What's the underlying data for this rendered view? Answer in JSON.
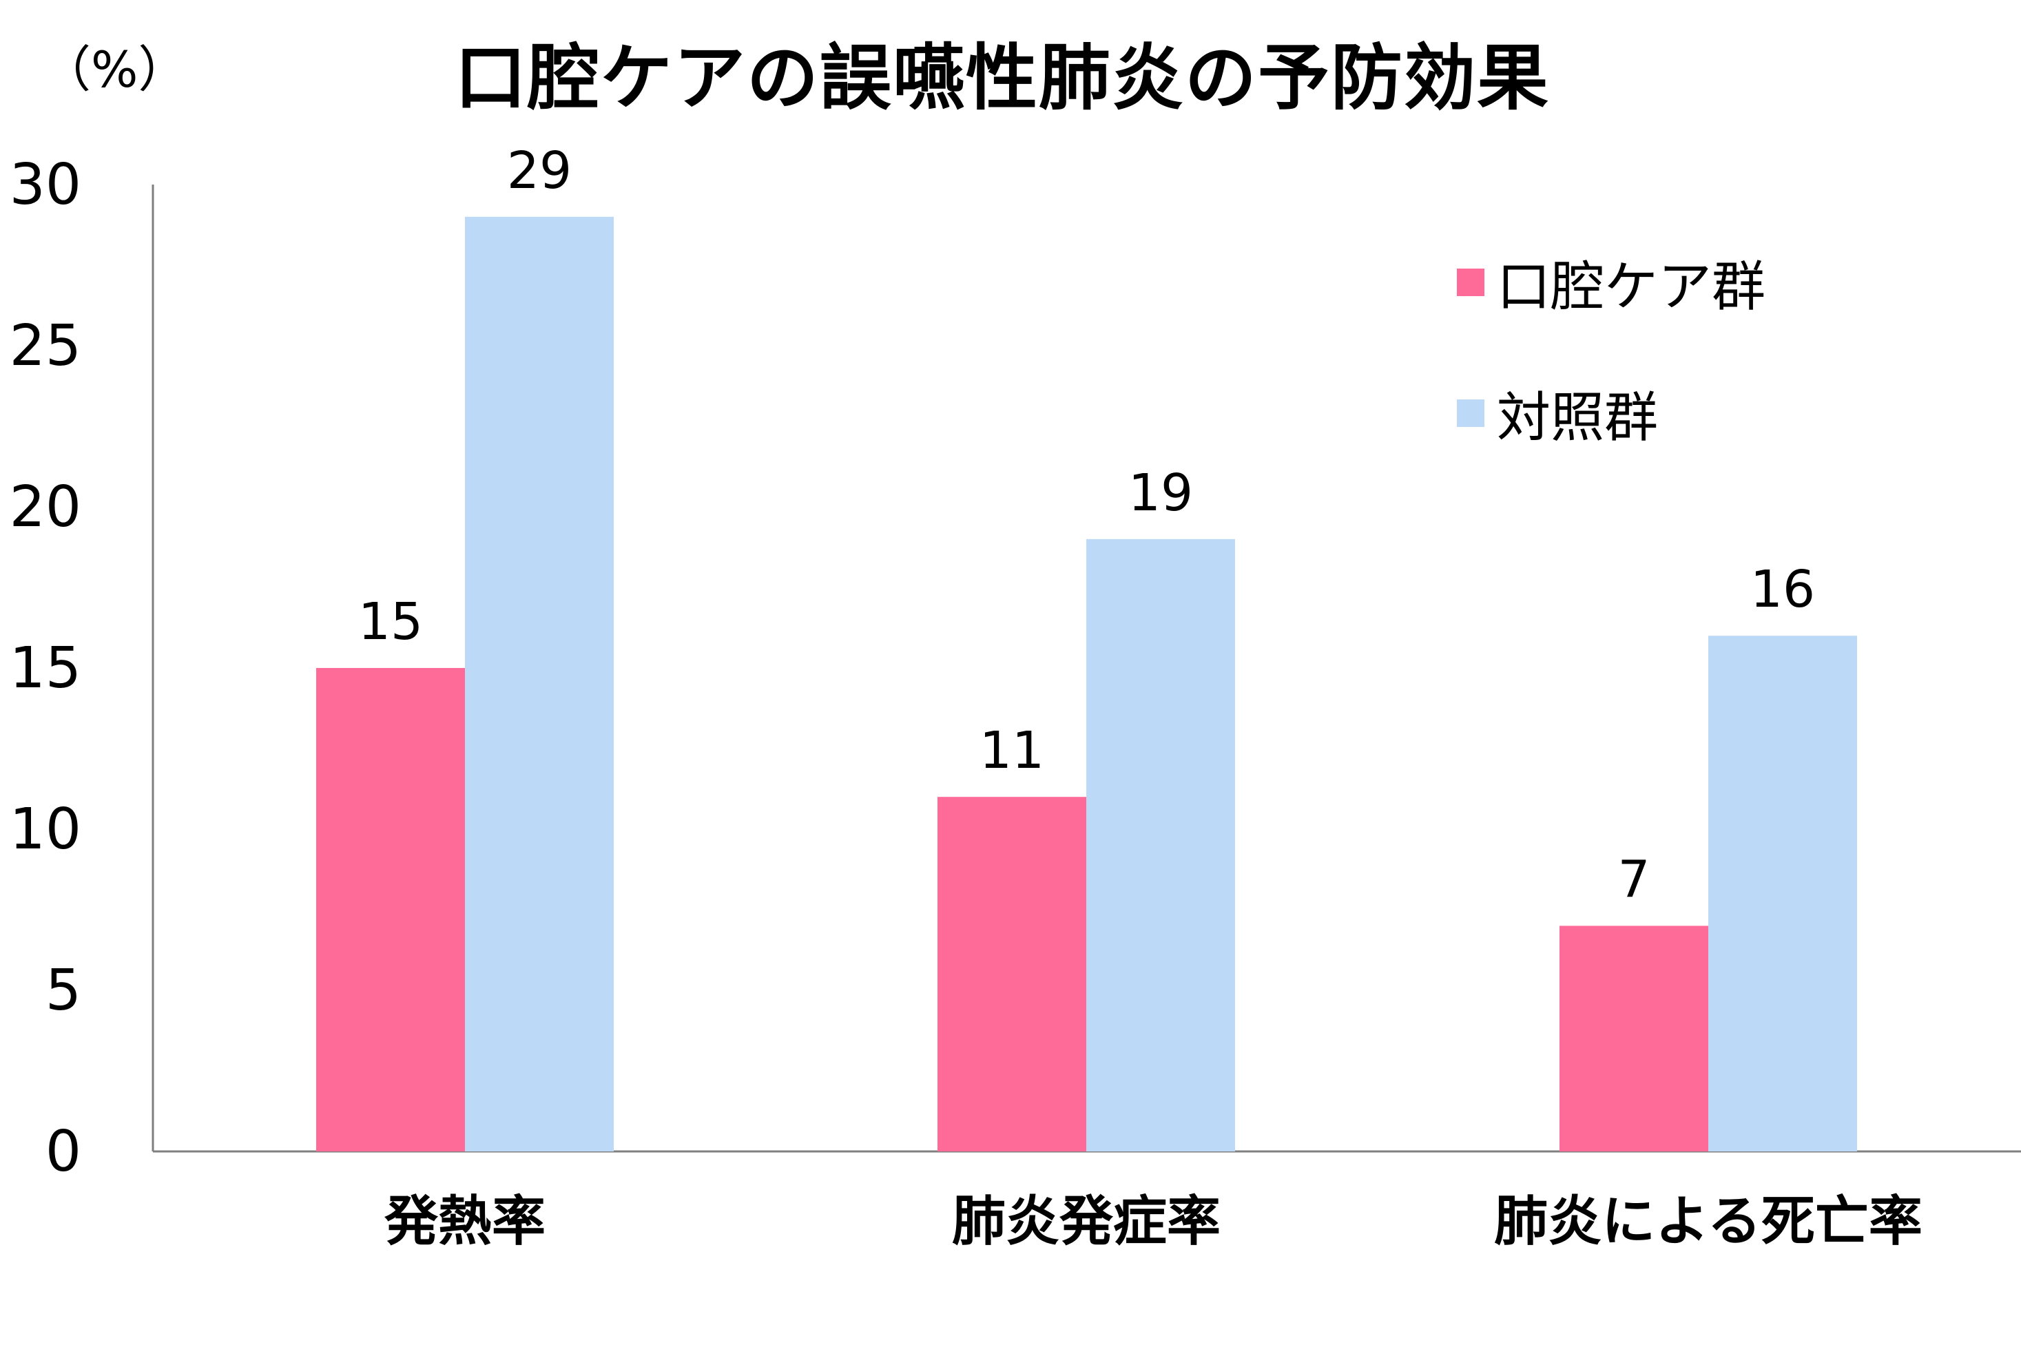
{
  "chart_data": {
    "type": "bar",
    "title": "口腔ケアの誤嚥性肺炎の予防効果",
    "unit_label": "（%）",
    "categories": [
      "発熱率",
      "肺炎発症率",
      "肺炎による死亡率"
    ],
    "series": [
      {
        "name": "口腔ケア群",
        "values": [
          15,
          11,
          7
        ],
        "color": "#ff6b98"
      },
      {
        "name": "対照群",
        "values": [
          29,
          19,
          16
        ],
        "color": "#bcd9f8"
      }
    ],
    "ylim": [
      0,
      30
    ],
    "yticks": [
      "0",
      "5",
      "10",
      "15",
      "20",
      "25",
      "30"
    ],
    "legend_position": "top-right",
    "grid": false
  }
}
